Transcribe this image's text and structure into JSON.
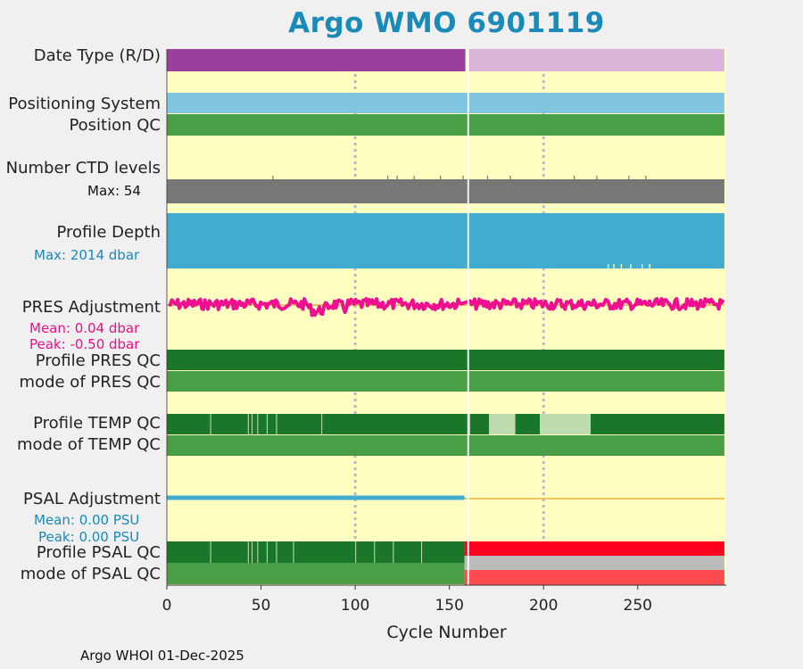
{
  "title": "Argo WMO 6901119",
  "footer": "Argo WHOI 01-Dec-2025",
  "colors": {
    "background": "#f0f0f0",
    "panel": "#ffffc2",
    "title": "#1a8ab8",
    "realtime": "#9b3f9c",
    "delayed": "#dbb4da",
    "positioning": "#80c6e0",
    "qc_good": "#4a9e46",
    "qc_dark_good": "#1a7629",
    "qc_light": "#bcdcb0",
    "qc_bad": "#ff0020",
    "qc_bad_mode": "#ff4a50",
    "qc_gray": "#bbbbbb",
    "ctd": "#777777",
    "depth": "#42abd0",
    "pres_adj": "#ee1090",
    "psal_adj": "#42abd0",
    "zero_line": "#e8b040"
  },
  "rows": {
    "date_type": "Date Type (R/D)",
    "positioning": "Positioning System",
    "position_qc": "Position QC",
    "ctd_levels": "Number CTD levels",
    "ctd_max": "Max: 54",
    "profile_depth": "Profile Depth",
    "depth_max": "Max: 2014 dbar",
    "pres_adj": "PRES Adjustment",
    "pres_mean": "Mean: 0.04 dbar",
    "pres_peak": "Peak: -0.50 dbar",
    "pres_qc": "Profile PRES QC",
    "pres_mode": "mode of PRES QC",
    "temp_qc": "Profile TEMP QC",
    "temp_mode": "mode of TEMP QC",
    "psal_adj": "PSAL Adjustment",
    "psal_mean": "Mean: 0.00 PSU",
    "psal_peak": "Peak: 0.00 PSU",
    "psal_qc": "Profile PSAL QC",
    "psal_mode": "mode of PSAL QC"
  },
  "chart_data": {
    "type": "timeline",
    "title": "Argo WMO 6901119",
    "xlabel": "Cycle Number",
    "xlim": [
      0,
      297
    ],
    "xticks": [
      0,
      50,
      100,
      150,
      200,
      250
    ],
    "vgrid": [
      100,
      200
    ],
    "max_cycle": 296,
    "delayed_mode_from_cycle": 160,
    "gap_cycle": 160,
    "ctd_levels_max": 54,
    "profile_depth_max_dbar": 2014,
    "pres_adjustment": {
      "mean_dbar": 0.04,
      "peak_dbar": -0.5
    },
    "psal_adjustment": {
      "mean_psu": 0.0,
      "peak_psu": 0.0,
      "adjusted_until_cycle": 158
    },
    "temp_qc_light_ranges": [
      [
        23,
        23.5
      ],
      [
        43,
        43.5
      ],
      [
        45,
        45.5
      ],
      [
        48,
        48.5
      ],
      [
        53,
        53.5
      ],
      [
        58,
        58.5
      ],
      [
        82,
        82.5
      ],
      [
        160,
        161
      ],
      [
        171,
        185
      ],
      [
        198,
        225
      ]
    ],
    "psal_qc_light_ranges": [
      [
        23,
        23.5
      ],
      [
        43,
        43.5
      ],
      [
        45,
        45.5
      ],
      [
        48,
        48.5
      ],
      [
        53,
        53.5
      ],
      [
        58,
        58.5
      ],
      [
        67,
        67.5
      ],
      [
        100,
        100.5
      ],
      [
        110,
        110.5
      ],
      [
        120,
        120.5
      ],
      [
        135,
        135.5
      ]
    ],
    "psal_qc_bad_from_cycle": 160
  }
}
